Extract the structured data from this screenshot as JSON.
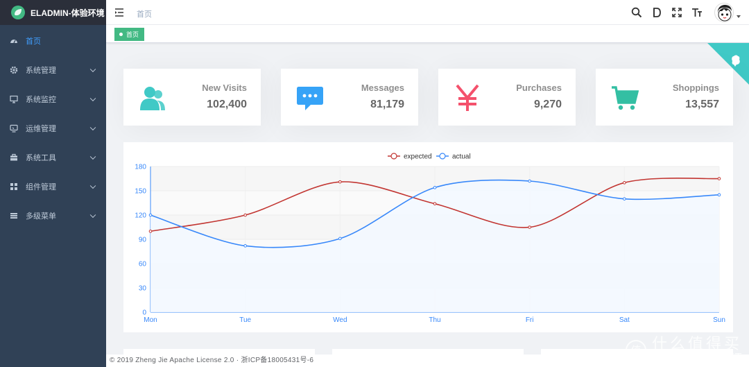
{
  "app": {
    "title": "ELADMIN-体验环境"
  },
  "sidebar": {
    "items": [
      {
        "label": "首页",
        "icon": "dashboard-icon",
        "active": true
      },
      {
        "label": "系统管理",
        "icon": "gear-icon"
      },
      {
        "label": "系统监控",
        "icon": "monitor-icon"
      },
      {
        "label": "运维管理",
        "icon": "server-icon"
      },
      {
        "label": "系统工具",
        "icon": "toolbox-icon"
      },
      {
        "label": "组件管理",
        "icon": "components-icon"
      },
      {
        "label": "多级菜单",
        "icon": "menu-icon"
      }
    ]
  },
  "navbar": {
    "breadcrumb": "首页",
    "icons": [
      "search-icon",
      "doc-icon",
      "fullscreen-icon",
      "font-size-icon"
    ]
  },
  "tags": [
    {
      "label": "首页",
      "active": true
    }
  ],
  "panels": [
    {
      "label": "New Visits",
      "value": "102,400",
      "icon": "people-icon",
      "color": "#40c9c6"
    },
    {
      "label": "Messages",
      "value": "81,179",
      "icon": "message-icon",
      "color": "#36a3f7"
    },
    {
      "label": "Purchases",
      "value": "9,270",
      "icon": "money-icon",
      "color": "#f4516c"
    },
    {
      "label": "Shoppings",
      "value": "13,557",
      "icon": "shopping-icon",
      "color": "#34bfa3"
    }
  ],
  "chart_data": {
    "type": "line",
    "categories": [
      "Mon",
      "Tue",
      "Wed",
      "Thu",
      "Fri",
      "Sat",
      "Sun"
    ],
    "series": [
      {
        "name": "expected",
        "values": [
          100,
          120,
          161,
          134,
          105,
          160,
          165
        ],
        "color": "#c23531"
      },
      {
        "name": "actual",
        "values": [
          120,
          82,
          91,
          154,
          162,
          140,
          145
        ],
        "color": "#3888fa"
      }
    ],
    "yticks": [
      0,
      30,
      60,
      90,
      120,
      150,
      180
    ],
    "ylim": [
      0,
      180
    ],
    "legend": "top-center",
    "grid": true
  },
  "footer": {
    "text": "© 2019 Zheng Jie Apache License 2.0 · 浙ICP备18005431号-6"
  },
  "watermark": {
    "cn": "什么值得买",
    "en": "SMYZ.NET",
    "badge": "值"
  }
}
